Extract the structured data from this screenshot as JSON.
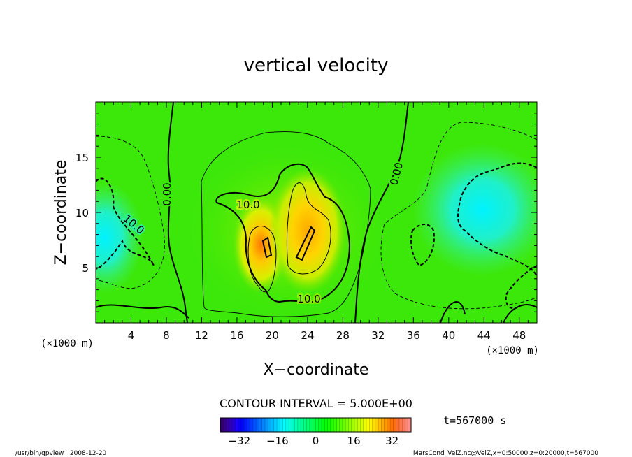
{
  "chart_data": {
    "type": "contour",
    "title": "vertical velocity",
    "xlabel": "X−coordinate",
    "ylabel": "Z−coordinate",
    "x_unit": "(×1000 m)",
    "y_unit": "(×1000 m)",
    "xlim": [
      0,
      50
    ],
    "ylim": [
      0,
      20
    ],
    "x_ticks": [
      4,
      8,
      12,
      16,
      20,
      24,
      28,
      32,
      36,
      40,
      44,
      48
    ],
    "y_ticks": [
      5,
      10,
      15
    ],
    "contour_interval": "CONTOUR INTERVAL = 5.000E+00",
    "contour_labels": [
      "0.00",
      "0.00",
      "10.0",
      "10.0",
      "10.0"
    ],
    "colorbar": {
      "ticks": [
        "−32",
        "−16",
        "0",
        "16",
        "32"
      ],
      "range": [
        -40,
        40
      ]
    },
    "time_label": "t=567000 s",
    "updraft_peaks": [
      {
        "x": 20,
        "z": 7.5
      },
      {
        "x": 24.5,
        "z": 7.5
      }
    ],
    "downdraft_regions": [
      {
        "x": 2,
        "z": 8
      },
      {
        "x": 46,
        "z": 10
      }
    ]
  },
  "footer": {
    "left": "/usr/bin/gpview   2008-12-20",
    "right": "MarsCond_VelZ.nc@VelZ,x=0:50000,z=0:20000,t=567000"
  }
}
